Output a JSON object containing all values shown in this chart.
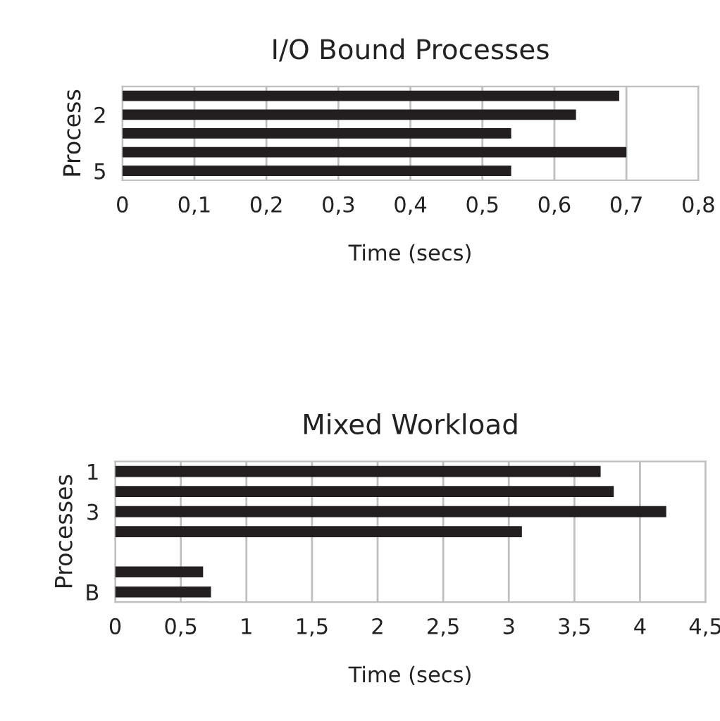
{
  "chart_data": [
    {
      "type": "bar",
      "orientation": "horizontal",
      "title": "I/O Bound Processes",
      "xlabel": "Time (secs)",
      "ylabel": "Process",
      "categories": [
        null,
        "2",
        null,
        null,
        "5"
      ],
      "values": [
        0.69,
        0.63,
        0.54,
        0.7,
        0.54
      ],
      "color": "#231f20",
      "xlim": [
        0,
        0.8
      ],
      "xticks": [
        0,
        {
          "value": 0.1,
          "label": "0,1"
        },
        {
          "value": 0.2,
          "label": "0,2"
        },
        {
          "value": 0.3,
          "label": "0,3"
        },
        {
          "value": 0.4,
          "label": "0,4"
        },
        {
          "value": 0.5,
          "label": "0,5"
        },
        {
          "value": 0.6,
          "label": "0,6"
        },
        {
          "value": 0.7,
          "label": "0,7"
        },
        {
          "value": 0.8,
          "label": "0,8"
        }
      ],
      "grid": "x",
      "legend": false
    },
    {
      "type": "bar",
      "orientation": "horizontal",
      "title": "Mixed Workload",
      "xlabel": "Time (secs)",
      "ylabel": "Processes",
      "categories": [
        "1",
        null,
        "3",
        null,
        null,
        null,
        "B"
      ],
      "values": [
        3.7,
        3.8,
        4.2,
        3.1,
        null,
        0.67,
        0.73
      ],
      "color": "#231f20",
      "xlim": [
        0,
        4.5
      ],
      "xticks": [
        0,
        {
          "value": 0.5,
          "label": "0,5"
        },
        1,
        {
          "value": 1.5,
          "label": "1,5"
        },
        2,
        {
          "value": 2.5,
          "label": "2,5"
        },
        3,
        {
          "value": 3.5,
          "label": "3,5"
        },
        4,
        {
          "value": 4.5,
          "label": "4,5"
        }
      ],
      "grid": "x",
      "legend": false
    }
  ]
}
